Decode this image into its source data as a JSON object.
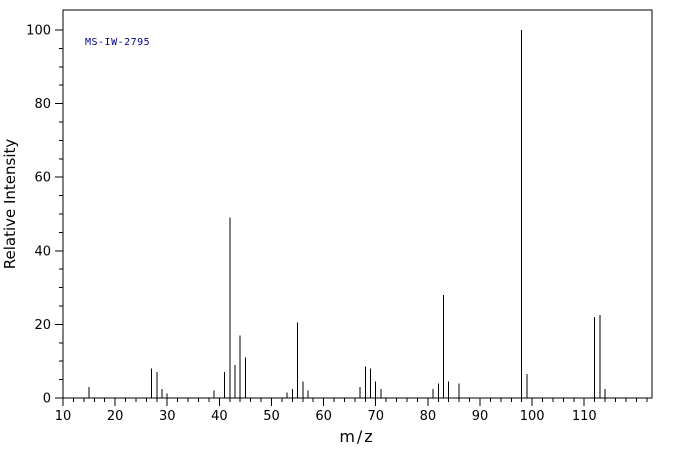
{
  "chart_data": {
    "type": "bar",
    "subtype": "mass-spectrum-stick-plot",
    "title": "",
    "annotation": "MS-IW-2795",
    "xlabel": "m/z",
    "ylabel": "Relative Intensity",
    "xlim": [
      10,
      123
    ],
    "ylim": [
      0,
      100
    ],
    "x_major_ticks": [
      10,
      20,
      30,
      40,
      50,
      60,
      70,
      80,
      90,
      100,
      110
    ],
    "x_minor_step": 2,
    "y_major_ticks": [
      0,
      20,
      40,
      60,
      80,
      100
    ],
    "y_minor_step": 5,
    "legend": "none",
    "grid": "off",
    "peaks": [
      [
        15,
        3
      ],
      [
        27,
        8
      ],
      [
        28,
        7
      ],
      [
        29,
        2.5
      ],
      [
        30,
        1.2
      ],
      [
        39,
        2
      ],
      [
        41,
        7
      ],
      [
        42,
        49
      ],
      [
        43,
        9
      ],
      [
        44,
        17
      ],
      [
        45,
        11
      ],
      [
        53,
        1.5
      ],
      [
        54,
        2.5
      ],
      [
        55,
        20.5
      ],
      [
        56,
        4.5
      ],
      [
        57,
        2
      ],
      [
        67,
        3
      ],
      [
        68,
        8.5
      ],
      [
        69,
        8
      ],
      [
        70,
        4.5
      ],
      [
        71,
        2.5
      ],
      [
        81,
        2.5
      ],
      [
        82,
        4
      ],
      [
        83,
        28
      ],
      [
        84,
        4.5
      ],
      [
        86,
        4
      ],
      [
        98,
        100
      ],
      [
        99,
        6.5
      ],
      [
        112,
        22
      ],
      [
        113,
        22.5
      ],
      [
        114,
        2.5
      ]
    ],
    "colors": {
      "background": "#ffffff",
      "axis": "#000000",
      "peak": "#000000",
      "annotation": "#00008b"
    }
  }
}
